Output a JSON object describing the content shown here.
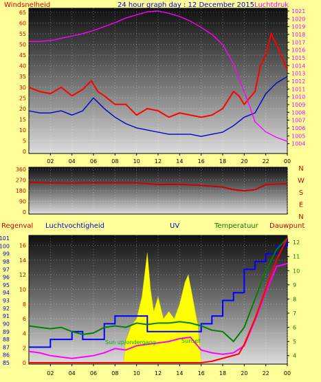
{
  "header": {
    "left_label": "Windsnelheid",
    "title": "24 hour graph day : 12 December 2015",
    "right_label": "Luchtdruk"
  },
  "middle": {
    "direction_letters": [
      "N",
      "W",
      "S",
      "E",
      "N"
    ]
  },
  "bottom_labels": {
    "rain": "Regenval",
    "humidity": "Luchtvochtigheid",
    "uv": "UV",
    "temperature": "Temperatuur",
    "dewpoint": "Dauwpunt",
    "sun_up": "Sun up/ondergang",
    "sun_down": "Sunset"
  },
  "colors": {
    "background": "#ffff99",
    "wind_gust": "#ff0000",
    "wind_avg": "#0000cc",
    "pressure": "#ff00ff",
    "direction": "#cc0000",
    "humidity": "#0000ff",
    "temperature": "#ff0000",
    "dewpoint": "#ff00ff",
    "outside_temp": "#008000",
    "solar": "#ffff00",
    "rain": "#ff0000",
    "label_blue": "#0000cc",
    "label_magenta": "#ff00ff",
    "label_green": "#008000",
    "label_red": "#cc0000"
  },
  "chart_data": [
    {
      "type": "line",
      "x_ticks": [
        "02",
        "04",
        "06",
        "08",
        "10",
        "12",
        "14",
        "16",
        "18",
        "20",
        "22",
        "00"
      ],
      "xlim": [
        0,
        24
      ],
      "ylim_left": [
        0,
        65
      ],
      "y_ticks_left": [
        "0",
        "5",
        "10",
        "15",
        "20",
        "25",
        "30",
        "35",
        "40",
        "45",
        "50",
        "55",
        "60",
        "65"
      ],
      "ylim_right": [
        1003,
        1021
      ],
      "y_ticks_right": [
        "1004",
        "1005",
        "1006",
        "1007",
        "1008",
        "1009",
        "1010",
        "1011",
        "1012",
        "1013",
        "1014",
        "1015",
        "1016",
        "1017",
        "1018",
        "1019",
        "1020",
        "1021"
      ],
      "series": [
        {
          "axis": "left",
          "color": "#ff0000",
          "x": [
            0,
            1,
            2,
            3,
            4,
            5,
            5.8,
            6.4,
            7,
            8,
            9,
            10,
            11,
            12,
            13,
            14,
            15,
            16,
            17,
            18,
            19,
            19.5,
            20,
            21,
            21.5,
            22,
            22.5,
            23,
            24
          ],
          "values": [
            30,
            28,
            27,
            30,
            26,
            29,
            33,
            28,
            26,
            22,
            22,
            17,
            20,
            19,
            16,
            18,
            17,
            16,
            17,
            20,
            28,
            26,
            22,
            28,
            40,
            45,
            55,
            50,
            38
          ]
        },
        {
          "axis": "left",
          "color": "#0000cc",
          "x": [
            0,
            1,
            2,
            3,
            4,
            5,
            6,
            7,
            8,
            9,
            10,
            11,
            12,
            13,
            14,
            15,
            16,
            17,
            18,
            19,
            20,
            21,
            22,
            23,
            24
          ],
          "values": [
            19,
            18,
            18,
            19,
            17,
            19,
            25,
            20,
            16,
            13,
            11,
            10,
            9,
            8,
            8,
            8,
            7,
            8,
            9,
            12,
            16,
            18,
            27,
            32,
            35
          ]
        },
        {
          "axis": "right",
          "color": "#ff00ff",
          "x": [
            0,
            1,
            2,
            3,
            4,
            5,
            6,
            7,
            8,
            9,
            10,
            11,
            12,
            13,
            14,
            15,
            16,
            17,
            18,
            19,
            20,
            20.5,
            21,
            22,
            23,
            24
          ],
          "values": [
            1017.1,
            1017.1,
            1017.2,
            1017.5,
            1017.8,
            1018.1,
            1018.5,
            1019.0,
            1019.5,
            1020.1,
            1020.5,
            1020.9,
            1021.0,
            1020.7,
            1020.3,
            1019.7,
            1018.9,
            1018.0,
            1016.7,
            1014.2,
            1010.6,
            1008.8,
            1006.8,
            1005.5,
            1004.8,
            1004.3
          ]
        }
      ]
    },
    {
      "type": "line",
      "x_ticks": [
        "02",
        "04",
        "06",
        "08",
        "10",
        "12",
        "14",
        "16",
        "18",
        "20",
        "22",
        "00"
      ],
      "xlim": [
        0,
        24
      ],
      "ylim": [
        0,
        360
      ],
      "y_ticks": [
        "0",
        "90",
        "180",
        "270",
        "360"
      ],
      "series": [
        {
          "color": "#cc0000",
          "x": [
            0,
            2,
            4,
            6,
            8,
            10,
            12,
            14,
            16,
            18,
            19,
            20,
            21,
            22,
            24
          ],
          "values": [
            250,
            245,
            243,
            247,
            246,
            245,
            232,
            233,
            224,
            210,
            188,
            178,
            188,
            231,
            240
          ]
        }
      ]
    },
    {
      "type": "line",
      "x_ticks": [
        "02",
        "04",
        "06",
        "08",
        "10",
        "12",
        "14",
        "16",
        "18",
        "20",
        "22",
        "00"
      ],
      "xlim": [
        0,
        24
      ],
      "ylim_left": [
        85,
        101
      ],
      "y_ticks_left": [
        "85",
        "86",
        "87",
        "88",
        "89",
        "90",
        "91",
        "92",
        "93",
        "94",
        "95",
        "96",
        "97",
        "98",
        "99",
        "100",
        "101"
      ],
      "ylim_right": [
        3.5,
        12.3
      ],
      "y_ticks_right": [
        "4",
        "5",
        "6",
        "7",
        "8",
        "9",
        "10",
        "11",
        "12"
      ],
      "rain_ticks": [
        "0",
        "2",
        "4",
        "6",
        "8",
        "10",
        "12",
        "14",
        "16"
      ],
      "series": [
        {
          "name": "Luchtvochtigheid",
          "axis": "left",
          "color": "#0000ff",
          "x": [
            0,
            1,
            2,
            3,
            4,
            5,
            6,
            7,
            8,
            9,
            10,
            11,
            12,
            13,
            14,
            15,
            16,
            17,
            18,
            19,
            20,
            21,
            22,
            23,
            24
          ],
          "values": [
            87,
            87,
            88,
            88,
            89,
            88,
            88,
            90,
            91,
            91,
            91,
            89,
            89,
            89,
            89,
            89,
            90,
            91,
            93,
            94,
            97,
            98,
            99,
            100,
            101
          ]
        },
        {
          "name": "Temperatuur",
          "axis": "right",
          "color": "#008000",
          "x": [
            0,
            1,
            2,
            3,
            4,
            5,
            6,
            7,
            8,
            9,
            10,
            11,
            12,
            13,
            14,
            15,
            16,
            17,
            18,
            19,
            20,
            21,
            22,
            23,
            24
          ],
          "values": [
            6.1,
            6.0,
            5.9,
            6.0,
            5.7,
            5.5,
            5.6,
            6.0,
            6.1,
            6.0,
            6.3,
            6.2,
            6.3,
            6.3,
            6.4,
            6.3,
            6.1,
            5.8,
            5.7,
            5.0,
            6.0,
            8.0,
            10.0,
            11.5,
            12.3
          ]
        },
        {
          "name": "Dauwpunt",
          "axis": "right",
          "color": "#ff00ff",
          "x": [
            0,
            1,
            2,
            3,
            4,
            5,
            6,
            7,
            8,
            9,
            10,
            11,
            12,
            13,
            14,
            15,
            16,
            17,
            18,
            19,
            20,
            21,
            22,
            23,
            24
          ],
          "values": [
            4.3,
            4.2,
            4.0,
            3.9,
            3.8,
            3.9,
            4.0,
            4.2,
            4.5,
            4.4,
            4.7,
            4.8,
            4.9,
            5.0,
            5.2,
            5.3,
            4.4,
            4.2,
            4.1,
            4.2,
            4.7,
            6.5,
            8.5,
            10.3,
            10.5
          ]
        },
        {
          "name": "UV",
          "axis": "rain",
          "type": "area",
          "color": "#ffff00",
          "x": [
            8.8,
            9,
            9.5,
            10,
            10.5,
            11,
            11.3,
            11.6,
            12,
            12.5,
            13,
            13.5,
            14,
            14.5,
            14.8,
            15.2,
            15.7,
            16
          ],
          "values": [
            0,
            3,
            5,
            6,
            9,
            15,
            10,
            7,
            9,
            6,
            7,
            6,
            8,
            11,
            12,
            9,
            5,
            0
          ]
        },
        {
          "name": "Regenval",
          "axis": "rain",
          "type": "line",
          "color": "#ff0000",
          "x": [
            0,
            16,
            17,
            18,
            19,
            19.5,
            20,
            21,
            22,
            23,
            24
          ],
          "values": [
            0,
            0,
            0.2,
            0.6,
            1.0,
            1.2,
            2.5,
            6.0,
            10.0,
            14.0,
            17.0
          ]
        }
      ]
    }
  ]
}
